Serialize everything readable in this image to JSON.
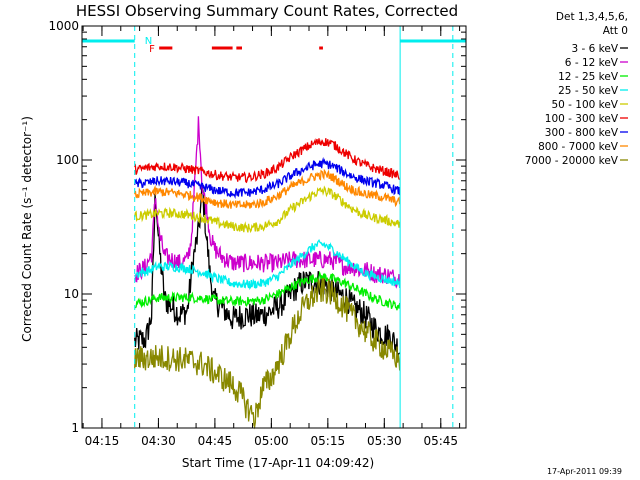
{
  "chart_data": {
    "type": "line",
    "title": "HESSI Observing Summary Count Rates, Corrected",
    "xlabel": "Start Time (17-Apr-11 04:09:42)",
    "ylabel": "Corrected Count Rate (s⁻¹ detector⁻¹)",
    "ylog": true,
    "ylim": [
      1,
      1000
    ],
    "x_unit": "minutes after 04:09:42",
    "xlim": [
      0,
      102
    ],
    "x_ticks": [
      {
        "x": 5.3,
        "label": "04:15"
      },
      {
        "x": 20.3,
        "label": "04:30"
      },
      {
        "x": 35.3,
        "label": "04:45"
      },
      {
        "x": 50.3,
        "label": "05:00"
      },
      {
        "x": 65.3,
        "label": "05:15"
      },
      {
        "x": 80.3,
        "label": "05:30"
      },
      {
        "x": 95.3,
        "label": "05:45"
      }
    ],
    "y_ticks": [
      {
        "y": 1,
        "label": "1"
      },
      {
        "y": 10,
        "label": "10"
      },
      {
        "y": 100,
        "label": "100"
      },
      {
        "y": 1000,
        "label": "1000"
      }
    ],
    "data_interval": [
      14.0,
      84.5
    ],
    "series": [
      {
        "name": "3 - 6 keV",
        "color": "#000000",
        "points": [
          [
            14,
            4.4
          ],
          [
            17,
            4.6
          ],
          [
            18.5,
            7
          ],
          [
            19.5,
            60
          ],
          [
            20.5,
            22
          ],
          [
            22,
            9
          ],
          [
            24,
            8
          ],
          [
            26,
            7
          ],
          [
            28,
            7.5
          ],
          [
            29.5,
            18
          ],
          [
            31,
            30
          ],
          [
            32,
            60
          ],
          [
            33,
            28
          ],
          [
            34,
            14
          ],
          [
            35,
            9
          ],
          [
            37,
            8
          ],
          [
            40,
            6.5
          ],
          [
            42,
            6.8
          ],
          [
            44,
            7
          ],
          [
            46,
            6.8
          ],
          [
            48,
            7
          ],
          [
            50,
            7.4
          ],
          [
            52,
            8
          ],
          [
            54,
            9
          ],
          [
            56,
            10.5
          ],
          [
            58,
            12
          ],
          [
            60,
            12.5
          ],
          [
            62,
            12.5
          ],
          [
            64,
            12
          ],
          [
            66,
            11
          ],
          [
            68,
            10
          ],
          [
            70,
            9.5
          ],
          [
            72,
            8
          ],
          [
            74,
            7.5
          ],
          [
            76,
            6.5
          ],
          [
            78,
            5.5
          ],
          [
            80,
            5
          ],
          [
            82,
            4.8
          ],
          [
            84.5,
            3.8
          ]
        ]
      },
      {
        "name": "6 - 12 keV",
        "color": "#cc00cc",
        "points": [
          [
            14,
            14
          ],
          [
            17,
            16
          ],
          [
            18.5,
            20
          ],
          [
            19.5,
            55
          ],
          [
            20.5,
            28
          ],
          [
            22,
            19
          ],
          [
            24,
            18
          ],
          [
            26,
            17
          ],
          [
            28,
            18
          ],
          [
            29,
            25
          ],
          [
            30,
            70
          ],
          [
            31,
            200
          ],
          [
            32,
            60
          ],
          [
            33,
            45
          ],
          [
            34,
            28
          ],
          [
            35,
            22
          ],
          [
            37,
            19
          ],
          [
            40,
            17
          ],
          [
            44,
            17
          ],
          [
            48,
            17
          ],
          [
            52,
            17
          ],
          [
            56,
            18
          ],
          [
            60,
            18
          ],
          [
            64,
            18
          ],
          [
            66,
            18
          ],
          [
            68,
            17
          ],
          [
            70,
            16
          ],
          [
            72,
            16
          ],
          [
            74,
            15
          ],
          [
            76,
            15
          ],
          [
            78,
            14
          ],
          [
            80,
            14
          ],
          [
            84.5,
            13
          ]
        ]
      },
      {
        "name": "12 - 25 keV",
        "color": "#00ee00",
        "points": [
          [
            14,
            8.5
          ],
          [
            18,
            9
          ],
          [
            20,
            9.4
          ],
          [
            24,
            9.4
          ],
          [
            28,
            9.4
          ],
          [
            32,
            9.3
          ],
          [
            36,
            9
          ],
          [
            40,
            8.8
          ],
          [
            44,
            8.8
          ],
          [
            48,
            9
          ],
          [
            52,
            10
          ],
          [
            56,
            11.5
          ],
          [
            60,
            12.8
          ],
          [
            62,
            13.2
          ],
          [
            64,
            13.4
          ],
          [
            66,
            13.2
          ],
          [
            68,
            12.6
          ],
          [
            70,
            12
          ],
          [
            72,
            11.2
          ],
          [
            74,
            10.5
          ],
          [
            76,
            9.8
          ],
          [
            78,
            9.2
          ],
          [
            80,
            8.8
          ],
          [
            84.5,
            8
          ]
        ]
      },
      {
        "name": "25 - 50 keV",
        "color": "#00eeee",
        "points": [
          [
            14,
            14
          ],
          [
            18,
            15
          ],
          [
            20,
            16
          ],
          [
            24,
            16
          ],
          [
            28,
            15.5
          ],
          [
            32,
            14.5
          ],
          [
            36,
            13
          ],
          [
            40,
            12
          ],
          [
            44,
            11.8
          ],
          [
            48,
            12
          ],
          [
            52,
            13.5
          ],
          [
            56,
            17
          ],
          [
            60,
            21
          ],
          [
            62,
            23
          ],
          [
            64,
            23.5
          ],
          [
            66,
            22
          ],
          [
            68,
            20
          ],
          [
            70,
            18
          ],
          [
            72,
            16.5
          ],
          [
            74,
            15
          ],
          [
            76,
            14
          ],
          [
            78,
            13.5
          ],
          [
            80,
            13
          ],
          [
            84.5,
            12
          ]
        ]
      },
      {
        "name": "50 - 100 keV",
        "color": "#cccc00",
        "points": [
          [
            14,
            38
          ],
          [
            18,
            39
          ],
          [
            20,
            40
          ],
          [
            24,
            40
          ],
          [
            28,
            39
          ],
          [
            32,
            37
          ],
          [
            36,
            34
          ],
          [
            40,
            32
          ],
          [
            44,
            31
          ],
          [
            48,
            32
          ],
          [
            52,
            35
          ],
          [
            56,
            44
          ],
          [
            60,
            52
          ],
          [
            62,
            57
          ],
          [
            64,
            59
          ],
          [
            66,
            57
          ],
          [
            68,
            52
          ],
          [
            70,
            47
          ],
          [
            72,
            43
          ],
          [
            74,
            40
          ],
          [
            76,
            38
          ],
          [
            78,
            37
          ],
          [
            80,
            36
          ],
          [
            84.5,
            33
          ]
        ]
      },
      {
        "name": "100 - 300 keV",
        "color": "#ee0000",
        "points": [
          [
            14,
            84
          ],
          [
            18,
            88
          ],
          [
            20,
            90
          ],
          [
            24,
            89
          ],
          [
            28,
            86
          ],
          [
            32,
            82
          ],
          [
            36,
            77
          ],
          [
            40,
            74
          ],
          [
            44,
            74
          ],
          [
            48,
            78
          ],
          [
            52,
            88
          ],
          [
            56,
            108
          ],
          [
            60,
            126
          ],
          [
            62,
            134
          ],
          [
            64,
            138
          ],
          [
            66,
            134
          ],
          [
            68,
            124
          ],
          [
            70,
            112
          ],
          [
            72,
            102
          ],
          [
            74,
            95
          ],
          [
            76,
            90
          ],
          [
            78,
            86
          ],
          [
            80,
            83
          ],
          [
            84.5,
            76
          ]
        ]
      },
      {
        "name": "300 - 800 keV",
        "color": "#0000ee",
        "points": [
          [
            14,
            66
          ],
          [
            18,
            68
          ],
          [
            20,
            70
          ],
          [
            24,
            69
          ],
          [
            28,
            67
          ],
          [
            32,
            63
          ],
          [
            36,
            59
          ],
          [
            40,
            57
          ],
          [
            44,
            57
          ],
          [
            48,
            60
          ],
          [
            52,
            66
          ],
          [
            56,
            78
          ],
          [
            60,
            88
          ],
          [
            62,
            92
          ],
          [
            64,
            94
          ],
          [
            66,
            92
          ],
          [
            68,
            86
          ],
          [
            70,
            80
          ],
          [
            72,
            75
          ],
          [
            74,
            72
          ],
          [
            76,
            69
          ],
          [
            78,
            67
          ],
          [
            80,
            65
          ],
          [
            84.5,
            58
          ]
        ]
      },
      {
        "name": "800 - 7000 keV",
        "color": "#ff8800",
        "points": [
          [
            14,
            55
          ],
          [
            18,
            57
          ],
          [
            20,
            58
          ],
          [
            24,
            57
          ],
          [
            28,
            55
          ],
          [
            32,
            52
          ],
          [
            36,
            48
          ],
          [
            40,
            46
          ],
          [
            44,
            46
          ],
          [
            48,
            48
          ],
          [
            52,
            54
          ],
          [
            56,
            64
          ],
          [
            60,
            72
          ],
          [
            62,
            76
          ],
          [
            64,
            78
          ],
          [
            66,
            76
          ],
          [
            68,
            70
          ],
          [
            70,
            64
          ],
          [
            72,
            60
          ],
          [
            74,
            57
          ],
          [
            76,
            55
          ],
          [
            78,
            54
          ],
          [
            80,
            53
          ],
          [
            84.5,
            48
          ]
        ]
      },
      {
        "name": "7000 - 20000 keV",
        "color": "#888800",
        "points": [
          [
            14,
            3.3
          ],
          [
            18,
            3.3
          ],
          [
            20,
            3.4
          ],
          [
            24,
            3.3
          ],
          [
            28,
            3.2
          ],
          [
            32,
            3.0
          ],
          [
            36,
            2.5
          ],
          [
            40,
            2.1
          ],
          [
            42,
            1.8
          ],
          [
            44,
            1.4
          ],
          [
            46,
            1.2
          ],
          [
            48,
            2.0
          ],
          [
            50,
            2.3
          ],
          [
            52,
            3.0
          ],
          [
            54,
            4.0
          ],
          [
            56,
            5.5
          ],
          [
            58,
            7.2
          ],
          [
            60,
            8.8
          ],
          [
            62,
            10
          ],
          [
            64,
            10.6
          ],
          [
            66,
            10.2
          ],
          [
            68,
            9.0
          ],
          [
            70,
            7.8
          ],
          [
            72,
            6.7
          ],
          [
            74,
            5.8
          ],
          [
            76,
            5.0
          ],
          [
            78,
            4.4
          ],
          [
            80,
            4.0
          ],
          [
            84.5,
            3.2
          ]
        ]
      }
    ],
    "flags": {
      "color": "#ee0000",
      "label": "F",
      "segments": [
        [
          20.5,
          24
        ],
        [
          34.5,
          40
        ],
        [
          41,
          42.5
        ],
        [
          63,
          64
        ]
      ]
    },
    "night_label": "N",
    "night": {
      "color": "#00eeee",
      "intervals": [
        [
          0,
          14.0
        ],
        [
          84.5,
          102
        ]
      ],
      "dashed_lines": [
        14.0,
        98.5
      ],
      "solid_lines": [
        0,
        84.5
      ]
    },
    "legend": {
      "header": [
        "Det 1,3,4,5,6,",
        "Att 0"
      ],
      "position": "right"
    },
    "footer": "17-Apr-2011 09:39"
  }
}
